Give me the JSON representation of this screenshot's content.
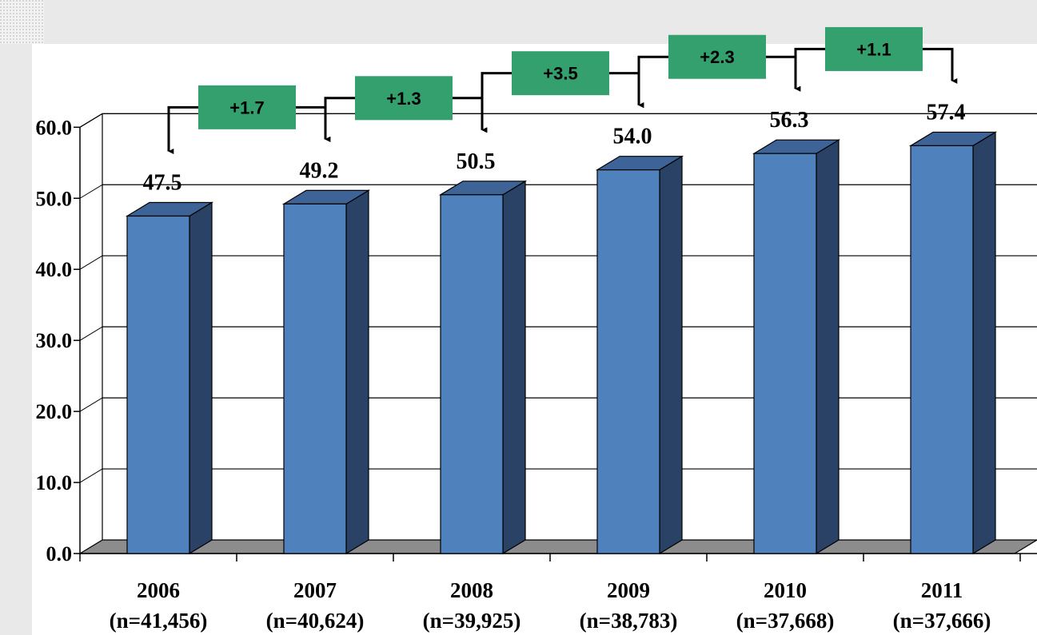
{
  "chart_data": {
    "type": "bar",
    "title": "",
    "xlabel": "",
    "ylabel": "",
    "ylim": [
      0,
      60
    ],
    "yticks": [
      "0.0",
      "10.0",
      "20.0",
      "30.0",
      "40.0",
      "50.0",
      "60.0"
    ],
    "categories": [
      "2006",
      "2007",
      "2008",
      "2009",
      "2010",
      "2011"
    ],
    "sample_sizes": [
      "(n=41,456)",
      "(n=40,624)",
      "(n=39,925)",
      "(n=38,783)",
      "(n=37,668)",
      "(n=37,666)"
    ],
    "values": [
      47.5,
      49.2,
      50.5,
      54.0,
      56.3,
      57.4
    ],
    "value_labels": [
      "47.5",
      "49.2",
      "50.5",
      "54.0",
      "56.3",
      "57.4"
    ],
    "changes": [
      {
        "from": "2006",
        "to": "2007",
        "label": "+1.7"
      },
      {
        "from": "2007",
        "to": "2008",
        "label": "+1.3"
      },
      {
        "from": "2008",
        "to": "2009",
        "label": "+3.5"
      },
      {
        "from": "2009",
        "to": "2010",
        "label": "+2.3"
      },
      {
        "from": "2010",
        "to": "2011",
        "label": "+1.1"
      }
    ],
    "grid": true,
    "legend": "none",
    "colors": {
      "bar_front": "#4f81bd",
      "bar_side": "#2a4266",
      "bar_top": "#3e6397",
      "floor": "#8c8c8c",
      "delta_box": "#33a06d",
      "band": "#e9e9e9"
    }
  }
}
